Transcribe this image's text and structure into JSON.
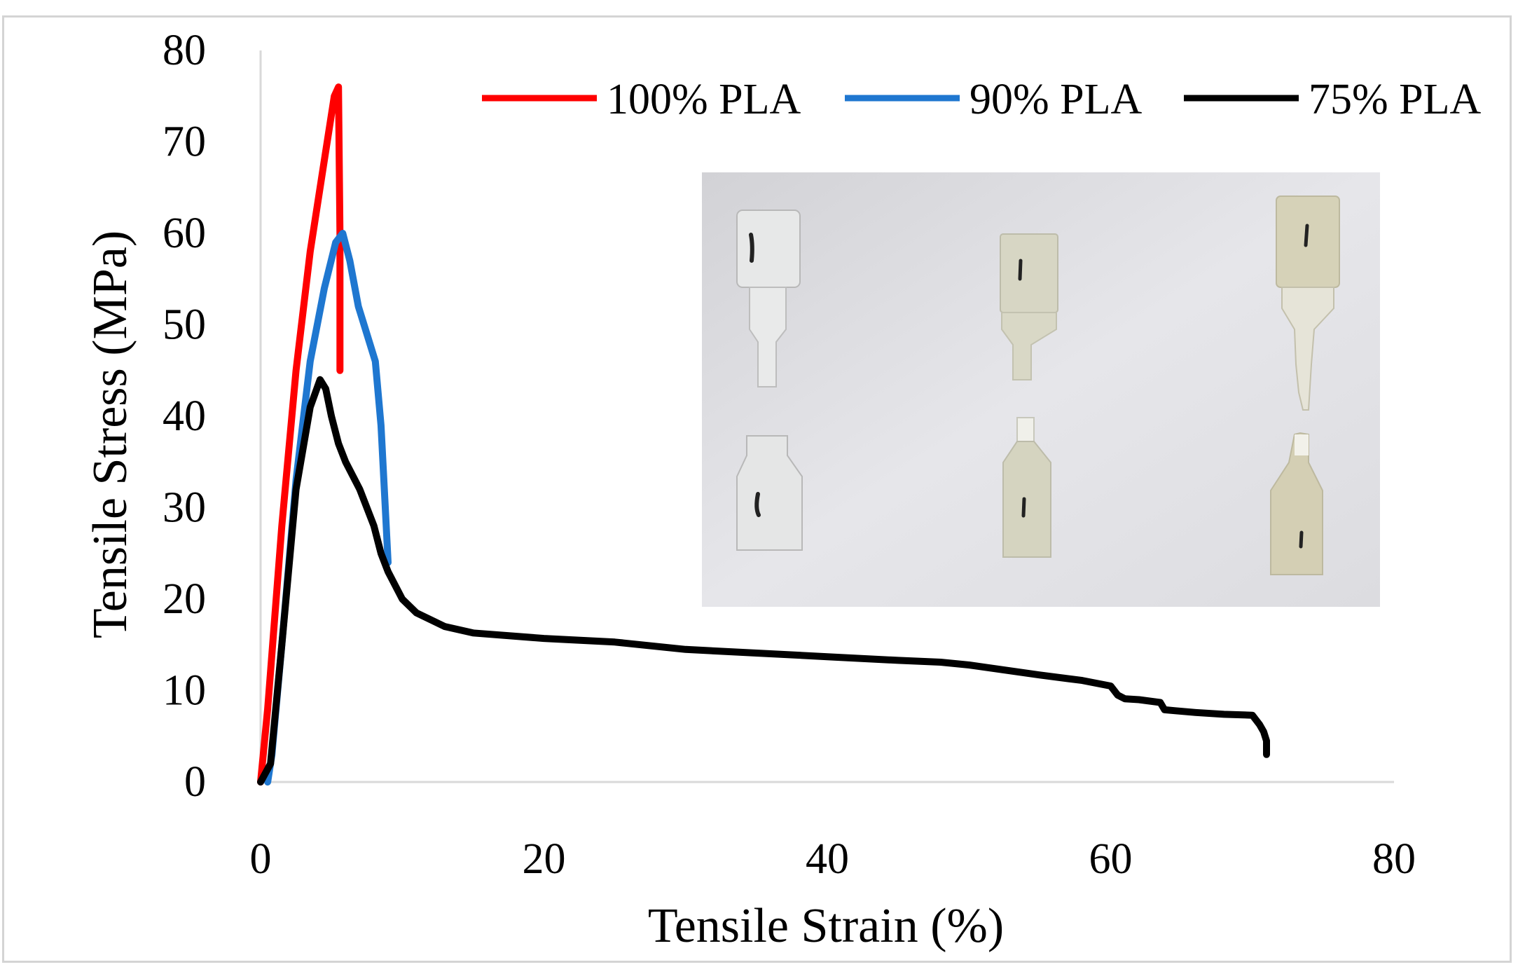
{
  "chart_data": {
    "type": "line",
    "title": "",
    "xlabel": "Tensile Strain (%)",
    "ylabel": "Tensile Stress (MPa)",
    "xlim": [
      0,
      80
    ],
    "ylim": [
      0,
      80
    ],
    "xticks": [
      "0",
      "20",
      "40",
      "60",
      "80"
    ],
    "yticks": [
      "0",
      "10",
      "20",
      "30",
      "40",
      "50",
      "60",
      "70",
      "80"
    ],
    "grid": false,
    "legend_position": "top-right",
    "series": [
      {
        "name": "100% PLA",
        "color": "#ff0000",
        "x": [
          0,
          0.5,
          1.5,
          2.5,
          3.5,
          4.5,
          5.2,
          5.5,
          5.6,
          5.6
        ],
        "y": [
          0,
          8,
          28,
          45,
          58,
          68,
          75,
          76,
          60,
          45
        ]
      },
      {
        "name": "90% PLA",
        "color": "#1f77d0",
        "x": [
          0.5,
          0.8,
          1.5,
          2.5,
          3.5,
          4.5,
          5.3,
          5.8,
          6.3,
          6.9,
          7.5,
          8.1,
          8.5,
          8.8,
          9.0
        ],
        "y": [
          0,
          3,
          15,
          33,
          46,
          54,
          59,
          60,
          57,
          52,
          49,
          46,
          39,
          30,
          24
        ]
      },
      {
        "name": "75% PLA",
        "color": "#000000",
        "x": [
          0,
          0.7,
          1.5,
          2.5,
          3.5,
          4.2,
          4.6,
          5.0,
          5.5,
          6.0,
          7.0,
          8.0,
          8.5,
          9.0,
          10.0,
          11.0,
          13.0,
          15.0,
          20.0,
          25.0,
          30.0,
          35.0,
          40.0,
          45.0,
          48.0,
          50.0,
          55.0,
          58.0,
          60.0,
          60.5,
          61.0,
          62.0,
          63.5,
          63.8,
          64.5,
          66.0,
          68.0,
          70.0,
          70.5,
          70.8,
          71.0,
          71.0
        ],
        "y": [
          0,
          2,
          15,
          32,
          41,
          44,
          43,
          40,
          37,
          35,
          32,
          28,
          25,
          23,
          20,
          18.5,
          17,
          16.3,
          15.7,
          15.3,
          14.5,
          14.1,
          13.7,
          13.3,
          13.1,
          12.8,
          11.7,
          11.1,
          10.5,
          9.5,
          9.1,
          9.0,
          8.7,
          7.9,
          7.8,
          7.6,
          7.4,
          7.3,
          6.3,
          5.5,
          4.5,
          3.0
        ]
      }
    ]
  }
}
